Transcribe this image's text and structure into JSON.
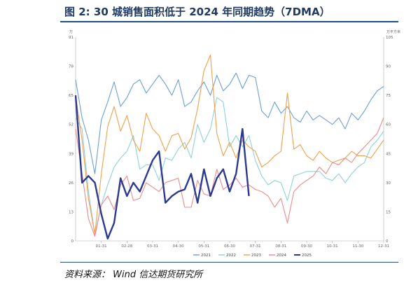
{
  "header": {
    "title": "图 2:  30 城销售面积低于 2024 年同期趋势（7DMA）"
  },
  "footer": {
    "source": "资料来源：  Wind  信达期货研究所"
  },
  "colors": {
    "s2021": "#6a9fd8",
    "s2022": "#8cd3d8",
    "s2023": "#f0a04b",
    "s2024": "#ee8a8a",
    "s2025": "#2b3990"
  },
  "chart_data": {
    "type": "line",
    "left_unit": "万",
    "right_unit": "万平方米",
    "ylim_left": [
      0,
      91
    ],
    "ylim_right": [
      0,
      105
    ],
    "left_ticks": [
      "91",
      "78",
      "65",
      "52",
      "39",
      "26",
      "13",
      "0"
    ],
    "right_ticks": [
      "105",
      "90",
      "75",
      "60",
      "45",
      "30",
      "15",
      "0"
    ],
    "x_ticks": [
      "01-31",
      "02-28",
      "03-31",
      "04-30",
      "05-31",
      "06-30",
      "07-31",
      "08-31",
      "09-30",
      "10-31",
      "11-30",
      "12-31"
    ],
    "grid": false,
    "legend_position": "bottom",
    "series": [
      {
        "name": "2021",
        "axis": "left",
        "values": [
          72,
          55,
          45,
          30,
          54,
          62,
          71,
          60,
          64,
          70,
          72,
          66,
          70,
          74,
          70,
          65,
          72,
          60,
          62,
          67,
          71,
          65,
          74,
          67,
          70,
          75,
          68,
          74,
          73,
          58,
          55,
          62,
          57,
          60,
          55,
          53,
          58,
          54,
          56,
          54,
          52,
          55,
          50,
          57,
          54,
          58,
          63,
          67,
          69
        ]
      },
      {
        "name": "2022",
        "axis": "left",
        "values": [
          55,
          50,
          22,
          3,
          16,
          25,
          33,
          37,
          40,
          47,
          32,
          34,
          34,
          27,
          37,
          36,
          41,
          44,
          37,
          52,
          44,
          50,
          64,
          62,
          42,
          47,
          42,
          47,
          36,
          29,
          25,
          27,
          26,
          18,
          29,
          30,
          31,
          31,
          31,
          28,
          27,
          30,
          26,
          30,
          33,
          35,
          42,
          45,
          49
        ]
      },
      {
        "name": "2023",
        "axis": "left",
        "values": [
          65,
          45,
          19,
          3,
          30,
          51,
          60,
          49,
          56,
          45,
          40,
          57,
          50,
          47,
          40,
          47,
          48,
          41,
          46,
          59,
          76,
          83,
          48,
          38,
          44,
          37,
          45,
          42,
          40,
          33,
          35,
          38,
          40,
          66,
          41,
          43,
          38,
          36,
          40,
          37,
          35,
          36,
          37,
          40,
          38,
          38,
          37,
          41,
          45
        ]
      },
      {
        "name": "2024",
        "axis": "left",
        "values": [
          50,
          30,
          10,
          2,
          16,
          20,
          14,
          25,
          29,
          18,
          19,
          26,
          24,
          22,
          26,
          27,
          28,
          15,
          15,
          27,
          21,
          20,
          32,
          23,
          25,
          28,
          24,
          25,
          23,
          22,
          20,
          15,
          19,
          8,
          22,
          25,
          27,
          29,
          33,
          30,
          35,
          34,
          37,
          35,
          39,
          42,
          45,
          48,
          55
        ]
      },
      {
        "name": "2025",
        "axis": "left",
        "values": [
          65,
          26,
          29,
          26,
          12,
          1,
          8,
          28,
          20,
          26,
          22,
          29,
          36,
          40,
          17,
          20,
          22,
          23,
          30,
          17,
          32,
          20,
          28,
          32,
          22,
          30,
          50,
          20
        ]
      }
    ]
  }
}
